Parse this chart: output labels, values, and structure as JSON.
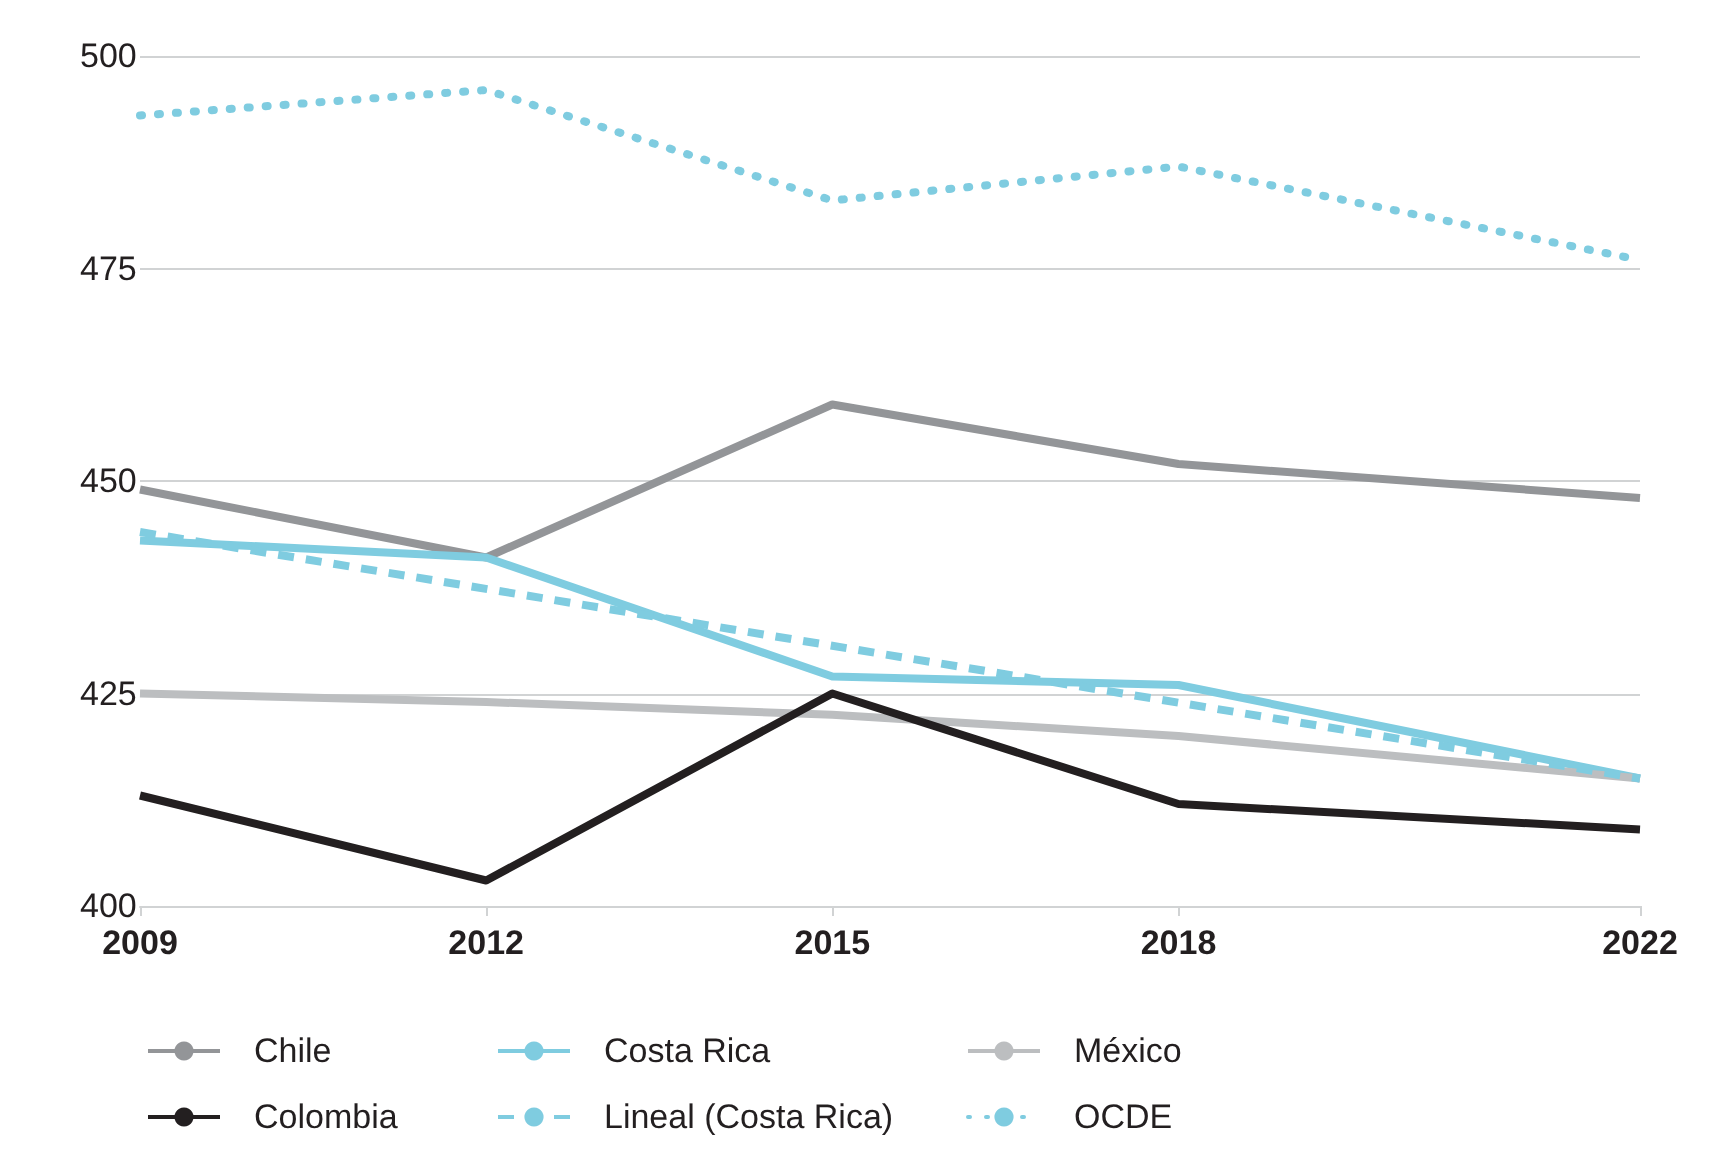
{
  "chart_data": {
    "type": "line",
    "x": [
      2009,
      2012,
      2015,
      2018,
      2022
    ],
    "xlim": [
      2009,
      2022
    ],
    "xticks": [
      2009,
      2012,
      2015,
      2018,
      2022
    ],
    "ylim": [
      400,
      500
    ],
    "yticks": [
      400,
      425,
      450,
      475,
      500
    ],
    "grid": "y",
    "legend": "bottom",
    "marker": "none",
    "series": [
      {
        "name": "Chile",
        "color": "#939598",
        "line_style": "solid",
        "values": [
          449,
          441,
          459,
          452,
          448
        ]
      },
      {
        "name": "Costa Rica",
        "color": "#7fcce0",
        "line_style": "solid",
        "values": [
          443,
          441,
          427,
          426,
          415
        ]
      },
      {
        "name": "México",
        "color": "#bcbec0",
        "line_style": "solid",
        "values": [
          425,
          424,
          422.5,
          420,
          415
        ]
      },
      {
        "name": "Colombia",
        "color": "#231f20",
        "line_style": "solid",
        "values": [
          413,
          403,
          425,
          412,
          409
        ]
      },
      {
        "name": "Lineal (Costa Rica)",
        "color": "#7fcce0",
        "line_style": "dashed",
        "x": [
          2009,
          2022
        ],
        "values": [
          444,
          415
        ]
      },
      {
        "name": "OCDE",
        "color": "#7fcce0",
        "line_style": "dotted",
        "values": [
          493,
          496,
          483,
          487,
          476
        ]
      }
    ]
  }
}
